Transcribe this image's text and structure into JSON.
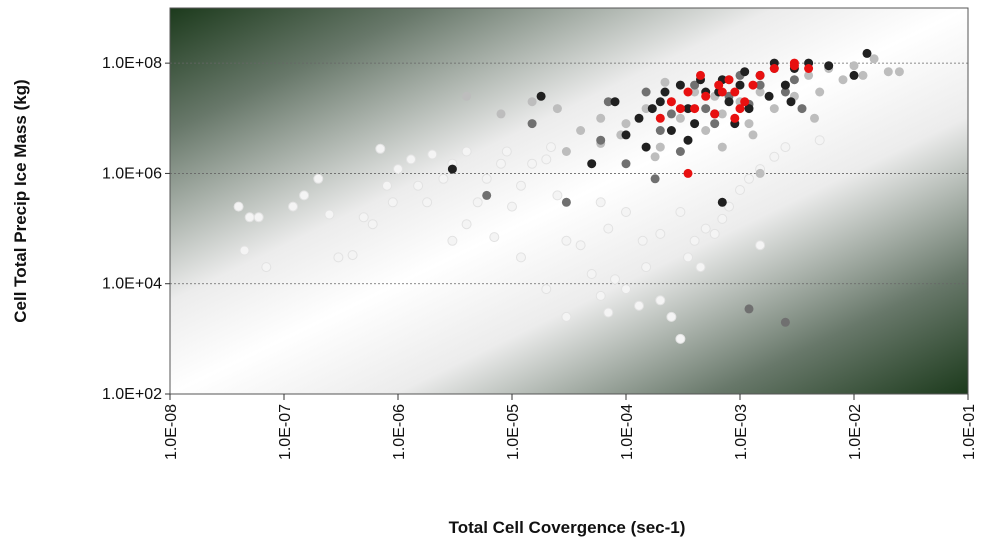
{
  "chart_data": {
    "type": "scatter",
    "title": "",
    "xlabel": "Total Cell Covergence (sec-1)",
    "ylabel": "Cell Total Precip Ice Mass (kg)",
    "x_scale": "log",
    "y_scale": "log",
    "xlim": [
      1e-08,
      0.1
    ],
    "ylim": [
      100,
      1000000000.0
    ],
    "x_ticks": [
      "1.0E-08",
      "1.0E-07",
      "1.0E-06",
      "1.0E-05",
      "1.0E-04",
      "1.0E-03",
      "1.0E-02",
      "1.0E-01"
    ],
    "y_ticks": [
      "1.0E+02",
      "1.0E+04",
      "1.0E+06",
      "1.0E+08"
    ],
    "y_gridlines": [
      10000.0,
      1000000.0,
      100000000.0
    ],
    "legend": "none",
    "colors": {
      "white": "#f4f4f4",
      "light_gray": "#bdbdbd",
      "dark_gray": "#707070",
      "black": "#202020",
      "red": "#e81010",
      "plot_dark": "#1c3a1c"
    },
    "series": [
      {
        "color": "white",
        "points": [
          [
            4e-08,
            250000.0
          ],
          [
            5e-08,
            160000.0
          ],
          [
            6e-08,
            160000.0
          ],
          [
            4.5e-08,
            40000.0
          ],
          [
            7e-08,
            20000.0
          ],
          [
            1.2e-07,
            250000.0
          ],
          [
            1.5e-07,
            400000.0
          ],
          [
            2e-07,
            800000.0
          ],
          [
            2.5e-07,
            180000.0
          ],
          [
            3e-07,
            30000.0
          ],
          [
            4e-07,
            33000.0
          ],
          [
            5e-07,
            160000.0
          ],
          [
            6e-07,
            120000.0
          ],
          [
            7e-07,
            2800000.0
          ],
          [
            8e-07,
            600000.0
          ],
          [
            9e-07,
            300000.0
          ],
          [
            1e-06,
            1200000.0
          ],
          [
            1.3e-06,
            1800000.0
          ],
          [
            1.5e-06,
            600000.0
          ],
          [
            2e-06,
            2200000.0
          ],
          [
            2.5e-06,
            800000.0
          ],
          [
            3e-06,
            1500000.0
          ],
          [
            4e-06,
            2500000.0
          ],
          [
            5e-06,
            300000.0
          ],
          [
            6e-06,
            800000.0
          ],
          [
            8e-06,
            1500000.0
          ],
          [
            1e-05,
            250000.0
          ],
          [
            1.2e-05,
            600000.0
          ],
          [
            1.5e-05,
            1500000.0
          ],
          [
            2e-05,
            1800000.0
          ],
          [
            2.5e-05,
            400000.0
          ],
          [
            3e-05,
            60000.0
          ],
          [
            4e-05,
            50000.0
          ],
          [
            5e-05,
            15000.0
          ],
          [
            6e-05,
            6000.0
          ],
          [
            7e-05,
            3000.0
          ],
          [
            8e-05,
            12000.0
          ],
          [
            0.0001,
            8000.0
          ],
          [
            0.00013,
            4000.0
          ],
          [
            0.00015,
            20000.0
          ],
          [
            0.0002,
            5000.0
          ],
          [
            0.00025,
            2500.0
          ],
          [
            0.0003,
            1000.0
          ],
          [
            0.00035,
            30000.0
          ],
          [
            0.0004,
            60000.0
          ],
          [
            0.0005,
            100000.0
          ],
          [
            0.0006,
            80000.0
          ],
          [
            0.0007,
            150000.0
          ],
          [
            0.0008,
            250000.0
          ],
          [
            0.001,
            500000.0
          ],
          [
            0.0012,
            800000.0
          ],
          [
            0.0015,
            1200000.0
          ],
          [
            0.002,
            2000000.0
          ],
          [
            0.0025,
            3000000.0
          ],
          [
            0.005,
            4000000.0
          ],
          [
            3e-05,
            2500.0
          ],
          [
            1.2e-05,
            30000.0
          ],
          [
            7e-06,
            70000.0
          ],
          [
            3e-06,
            60000.0
          ],
          [
            0.0002,
            80000.0
          ],
          [
            0.0001,
            200000.0
          ],
          [
            6e-05,
            300000.0
          ],
          [
            0.0003,
            200000.0
          ],
          [
            0.0015,
            50000.0
          ],
          [
            2e-05,
            8000.0
          ],
          [
            4e-06,
            120000.0
          ],
          [
            1.8e-06,
            300000.0
          ],
          [
            9e-06,
            2500000.0
          ],
          [
            2.2e-05,
            3000000.0
          ],
          [
            0.00045,
            20000.0
          ],
          [
            0.00014,
            60000.0
          ],
          [
            7e-05,
            100000.0
          ]
        ]
      },
      {
        "color": "light_gray",
        "points": [
          [
            4e-06,
            25000000.0
          ],
          [
            8e-06,
            12000000.0
          ],
          [
            1.5e-05,
            20000000.0
          ],
          [
            2.5e-05,
            15000000.0
          ],
          [
            4e-05,
            6000000.0
          ],
          [
            6e-05,
            10000000.0
          ],
          [
            8e-05,
            20000000.0
          ],
          [
            0.0001,
            8000000.0
          ],
          [
            0.00015,
            15000000.0
          ],
          [
            0.0002,
            3000000.0
          ],
          [
            0.00025,
            20000000.0
          ],
          [
            0.0003,
            10000000.0
          ],
          [
            0.0004,
            30000000.0
          ],
          [
            0.0005,
            6000000.0
          ],
          [
            0.0006,
            25000000.0
          ],
          [
            0.0007,
            12000000.0
          ],
          [
            0.0008,
            50000000.0
          ],
          [
            0.001,
            20000000.0
          ],
          [
            0.0012,
            8000000.0
          ],
          [
            0.0015,
            30000000.0
          ],
          [
            0.002,
            15000000.0
          ],
          [
            0.0025,
            40000000.0
          ],
          [
            0.003,
            25000000.0
          ],
          [
            0.004,
            60000000.0
          ],
          [
            0.005,
            30000000.0
          ],
          [
            0.006,
            80000000.0
          ],
          [
            0.008,
            50000000.0
          ],
          [
            0.01,
            90000000.0
          ],
          [
            0.012,
            60000000.0
          ],
          [
            0.015,
            120000000.0
          ],
          [
            0.02,
            70000000.0
          ],
          [
            0.025,
            70000000.0
          ],
          [
            0.00035,
            4000000.0
          ],
          [
            0.00018,
            2000000.0
          ],
          [
            9e-05,
            5000000.0
          ],
          [
            0.0007,
            3000000.0
          ],
          [
            0.0013,
            5000000.0
          ],
          [
            0.0045,
            10000000.0
          ],
          [
            0.00022,
            45000000.0
          ],
          [
            6e-05,
            3500000.0
          ],
          [
            3e-05,
            2500000.0
          ],
          [
            0.0015,
            1000000.0
          ]
        ]
      },
      {
        "color": "dark_gray",
        "points": [
          [
            6e-06,
            400000.0
          ],
          [
            1.5e-05,
            8000000.0
          ],
          [
            3e-05,
            300000.0
          ],
          [
            6e-05,
            4000000.0
          ],
          [
            0.0001,
            1500000.0
          ],
          [
            0.00015,
            30000000.0
          ],
          [
            0.0002,
            6000000.0
          ],
          [
            0.00025,
            12000000.0
          ],
          [
            0.0003,
            2500000.0
          ],
          [
            0.0004,
            40000000.0
          ],
          [
            0.0005,
            15000000.0
          ],
          [
            0.0006,
            8000000.0
          ],
          [
            0.0008,
            25000000.0
          ],
          [
            0.001,
            60000000.0
          ],
          [
            0.0012,
            18000000.0
          ],
          [
            0.0015,
            40000000.0
          ],
          [
            0.002,
            80000000.0
          ],
          [
            0.0025,
            30000000.0
          ],
          [
            0.003,
            50000000.0
          ],
          [
            0.0012,
            3500.0
          ],
          [
            0.0025,
            2000.0
          ],
          [
            0.0035,
            15000000.0
          ],
          [
            7e-05,
            20000000.0
          ],
          [
            0.00018,
            800000.0
          ]
        ]
      },
      {
        "color": "black",
        "points": [
          [
            3e-06,
            1200000.0
          ],
          [
            1.8e-05,
            25000000.0
          ],
          [
            5e-05,
            1500000.0
          ],
          [
            8e-05,
            20000000.0
          ],
          [
            0.0001,
            5000000.0
          ],
          [
            0.00013,
            10000000.0
          ],
          [
            0.00015,
            3000000.0
          ],
          [
            0.0002,
            20000000.0
          ],
          [
            0.00025,
            6000000.0
          ],
          [
            0.0003,
            40000000.0
          ],
          [
            0.00035,
            15000000.0
          ],
          [
            0.0004,
            8000000.0
          ],
          [
            0.0005,
            30000000.0
          ],
          [
            0.0006,
            12000000.0
          ],
          [
            0.0007,
            50000000.0
          ],
          [
            0.0008,
            20000000.0
          ],
          [
            0.0009,
            8000000.0
          ],
          [
            0.001,
            40000000.0
          ],
          [
            0.0012,
            15000000.0
          ],
          [
            0.0015,
            60000000.0
          ],
          [
            0.0018,
            25000000.0
          ],
          [
            0.002,
            100000000.0
          ],
          [
            0.0025,
            40000000.0
          ],
          [
            0.003,
            80000000.0
          ],
          [
            0.004,
            100000000.0
          ],
          [
            0.006,
            90000000.0
          ],
          [
            0.01,
            60000000.0
          ],
          [
            0.013,
            150000000.0
          ],
          [
            0.0007,
            300000.0
          ],
          [
            0.00022,
            30000000.0
          ],
          [
            0.00017,
            15000000.0
          ],
          [
            0.00045,
            50000000.0
          ],
          [
            0.00065,
            30000000.0
          ],
          [
            0.0011,
            70000000.0
          ],
          [
            0.0028,
            20000000.0
          ],
          [
            0.00035,
            4000000.0
          ]
        ]
      },
      {
        "color": "red",
        "points": [
          [
            0.0002,
            10000000.0
          ],
          [
            0.00025,
            20000000.0
          ],
          [
            0.0003,
            15000000.0
          ],
          [
            0.00035,
            30000000.0
          ],
          [
            0.0004,
            15000000.0
          ],
          [
            0.00045,
            60000000.0
          ],
          [
            0.0005,
            25000000.0
          ],
          [
            0.0006,
            12000000.0
          ],
          [
            0.0007,
            30000000.0
          ],
          [
            0.0008,
            50000000.0
          ],
          [
            0.0009,
            10000000.0
          ],
          [
            0.001,
            15000000.0
          ],
          [
            0.0011,
            20000000.0
          ],
          [
            0.0013,
            40000000.0
          ],
          [
            0.0015,
            60000000.0
          ],
          [
            0.002,
            80000000.0
          ],
          [
            0.003,
            100000000.0
          ],
          [
            0.004,
            80000000.0
          ],
          [
            0.00035,
            1000000.0
          ],
          [
            0.00065,
            40000000.0
          ],
          [
            0.0009,
            30000000.0
          ],
          [
            0.003,
            90000000.0
          ]
        ]
      }
    ]
  }
}
